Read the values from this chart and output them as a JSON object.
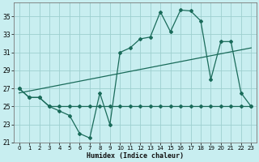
{
  "xlabel": "Humidex (Indice chaleur)",
  "bg_color": "#c8eef0",
  "grid_color": "#9dcfcf",
  "line_color": "#1a6b5a",
  "xlim": [
    -0.5,
    23.5
  ],
  "ylim": [
    21,
    36.5
  ],
  "yticks": [
    21,
    23,
    25,
    27,
    29,
    31,
    33,
    35
  ],
  "xticks": [
    0,
    1,
    2,
    3,
    4,
    5,
    6,
    7,
    8,
    9,
    10,
    11,
    12,
    13,
    14,
    15,
    16,
    17,
    18,
    19,
    20,
    21,
    22,
    23
  ],
  "curve_main_x": [
    0,
    1,
    2,
    3,
    4,
    5,
    6,
    7,
    8,
    9,
    10,
    11,
    12,
    13,
    14,
    15,
    16,
    17,
    18,
    19,
    20,
    21,
    22,
    23
  ],
  "curve_main_y": [
    27,
    26,
    26,
    25,
    24.5,
    24,
    22,
    21.5,
    26.5,
    23,
    31,
    31.5,
    32.5,
    32.7,
    35.5,
    33.3,
    35.7,
    35.6,
    34.5,
    28,
    32.2,
    32.2,
    26.5,
    25
  ],
  "curve_flat_x": [
    0,
    1,
    2,
    3,
    4,
    5,
    6,
    7,
    8,
    9,
    10,
    11,
    12,
    13,
    14,
    15,
    16,
    17,
    18,
    19,
    20,
    21,
    22,
    23
  ],
  "curve_flat_y": [
    27,
    26,
    26,
    25,
    25,
    25,
    25,
    25,
    25,
    25,
    25,
    25,
    25,
    25,
    25,
    25,
    25,
    25,
    25,
    25,
    25,
    25,
    25,
    25
  ],
  "trend_x": [
    0,
    23
  ],
  "trend_y": [
    26.5,
    31.5
  ]
}
